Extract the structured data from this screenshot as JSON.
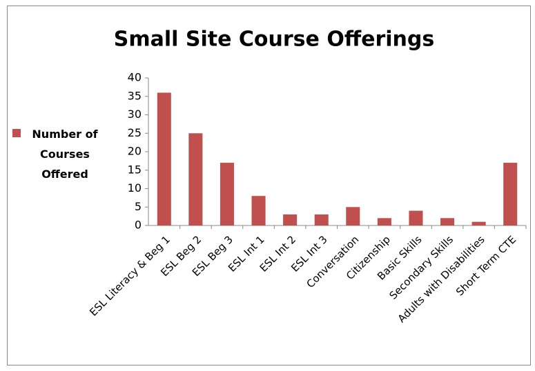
{
  "chart_data": {
    "type": "bar",
    "title": "Small Site Course Offerings",
    "categories": [
      "ESL Literacy & Beg 1",
      "ESL Beg 2",
      "ESL Beg 3",
      "ESL Int 1",
      "ESL Int 2",
      "ESL Int 3",
      "Conversation",
      "Citizenship",
      "Basic Skills",
      "Secondary Skills",
      "Adults with Disabilities",
      "Short Term CTE"
    ],
    "series": [
      {
        "name": "Number of Courses Offered",
        "color": "#c0504d",
        "values": [
          36,
          25,
          17,
          8,
          3,
          3,
          5,
          2,
          4,
          2,
          1,
          17
        ]
      }
    ],
    "ylim": [
      0,
      40
    ],
    "yticks": [
      0,
      5,
      10,
      15,
      20,
      25,
      30,
      35,
      40
    ],
    "grid": false,
    "legend": "left"
  }
}
